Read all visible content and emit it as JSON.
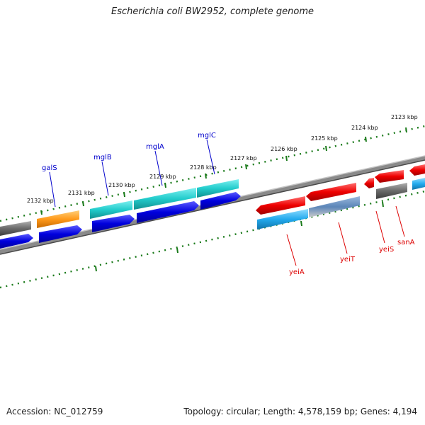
{
  "header": {
    "title": "Escherichia coli BW2952, complete genome"
  },
  "footer": {
    "accession": "Accession: NC_012759",
    "stats": "Topology: circular; Length: 4,578,159 bp; Genes: 4,194"
  },
  "map": {
    "ticks": [
      {
        "label": "2132 kbp"
      },
      {
        "label": "2131 kbp"
      },
      {
        "label": "2130 kbp"
      },
      {
        "label": "2129 kbp"
      },
      {
        "label": "2128 kbp"
      },
      {
        "label": "2127 kbp"
      },
      {
        "label": "2126 kbp"
      },
      {
        "label": "2125 kbp"
      },
      {
        "label": "2124 kbp"
      },
      {
        "label": "2123 kbp"
      }
    ],
    "genes_top": [
      {
        "name": "galS"
      },
      {
        "name": "mglB"
      },
      {
        "name": "mglA"
      },
      {
        "name": "mglC"
      }
    ],
    "genes_bottom": [
      {
        "name": "yeiA"
      },
      {
        "name": "yeiT"
      },
      {
        "name": "yeiS"
      },
      {
        "name": "sanA"
      }
    ],
    "colors": {
      "forward_label": "#0000cc",
      "reverse_label": "#dd0000",
      "tick": "#1a7a1a",
      "backbone": "#808080",
      "cds_blue": "#0000dd",
      "cds_cyan": "#22cccc",
      "cds_orange": "#ff8c00",
      "cds_red": "#ee0000",
      "cds_gray": "#666666",
      "cds_sky": "#22aaee",
      "cds_steel": "#5588bb"
    }
  }
}
